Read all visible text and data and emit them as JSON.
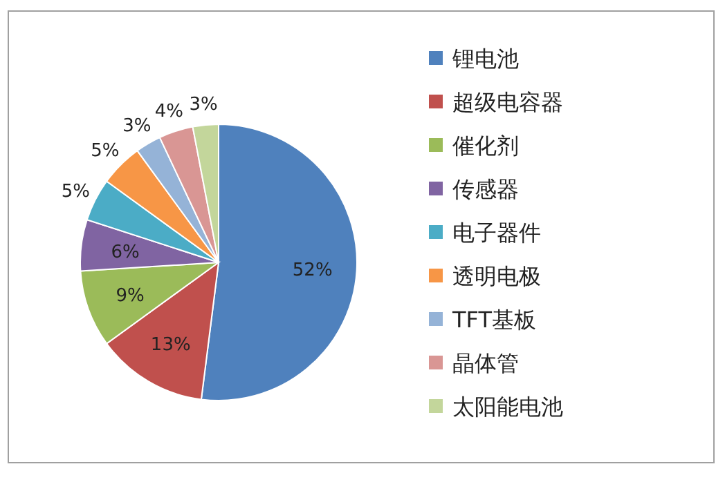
{
  "chart_data": {
    "type": "pie",
    "categories": [
      "锂电池",
      "超级电容器",
      "催化剂",
      "传感器",
      "电子器件",
      "透明电极",
      "TFT基板",
      "晶体管",
      "太阳能电池"
    ],
    "values": [
      52,
      13,
      9,
      6,
      5,
      5,
      3,
      4,
      3
    ],
    "value_labels": [
      "52%",
      "13%",
      "9%",
      "6%",
      "5%",
      "5%",
      "3%",
      "4%",
      "3%"
    ],
    "colors": [
      "#4f81bd",
      "#c0504d",
      "#9bbb59",
      "#8064a2",
      "#4bacc6",
      "#f79646",
      "#95b3d7",
      "#d99694",
      "#c3d69b"
    ],
    "legend": "right"
  }
}
